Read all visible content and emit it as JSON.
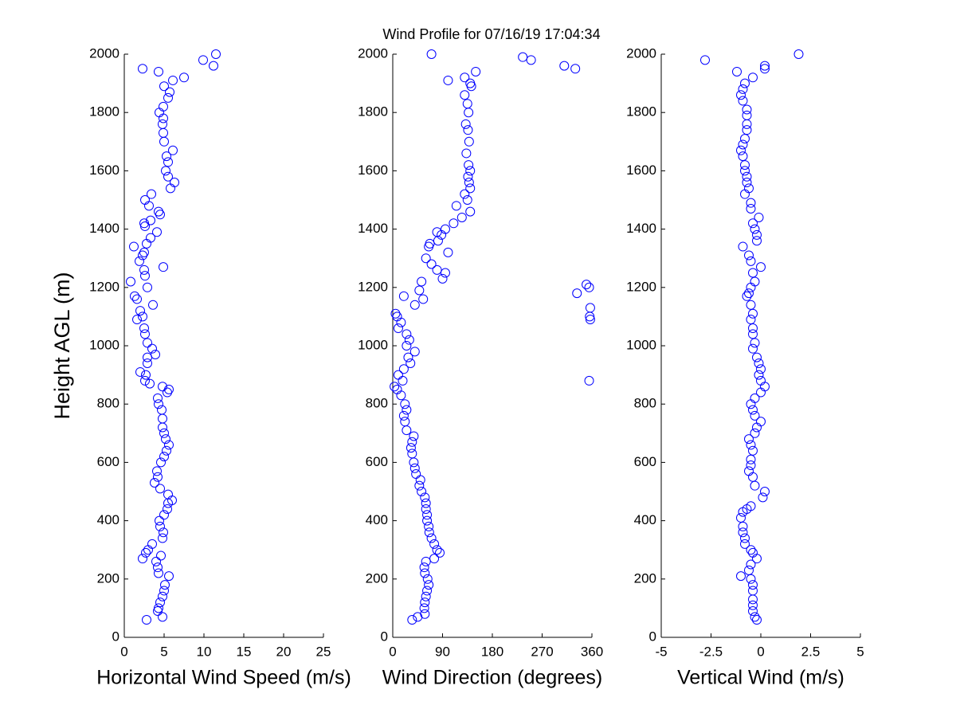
{
  "chart_data": [
    {
      "type": "scatter",
      "title": "Wind Profile for  07/16/19 17:04:34",
      "xlabel": "Horizontal Wind Speed (m/s)",
      "ylabel": "Height AGL (m)",
      "color": "#0000ff",
      "xlim": [
        0,
        25
      ],
      "xticks": [
        0,
        5,
        10,
        15,
        20,
        25
      ],
      "ylim": [
        0,
        2000
      ],
      "yticks": [
        0,
        200,
        400,
        600,
        800,
        1000,
        1200,
        1400,
        1600,
        1800,
        2000
      ],
      "x": [
        2.8,
        4.8,
        4.2,
        4.3,
        4.5,
        4.8,
        5.0,
        5.1,
        5.6,
        4.3,
        4.2,
        4.0,
        2.3,
        4.6,
        2.7,
        3.0,
        3.5,
        4.8,
        4.9,
        4.5,
        4.4,
        5.0,
        5.4,
        5.5,
        6.0,
        5.5,
        4.5,
        3.8,
        4.2,
        4.1,
        4.6,
        5.0,
        5.3,
        5.6,
        5.2,
        5.0,
        4.8,
        4.8,
        4.7,
        4.3,
        4.2,
        5.4,
        5.6,
        4.8,
        3.2,
        2.6,
        2.7,
        2.0,
        2.9,
        2.9,
        3.9,
        3.5,
        2.9,
        2.6,
        2.5,
        1.6,
        2.3,
        2.0,
        3.6,
        1.6,
        1.3,
        2.9,
        0.8,
        2.6,
        2.5,
        4.9,
        1.9,
        2.3,
        2.5,
        1.2,
        2.8,
        3.3,
        4.1,
        2.6,
        2.5,
        3.3,
        4.5,
        4.3,
        3.1,
        2.6,
        3.4,
        5.8,
        6.3,
        5.5,
        5.2,
        5.5,
        5.3,
        6.1,
        5.0,
        4.9,
        4.8,
        4.9,
        4.4,
        4.9,
        5.5,
        5.7,
        5.0,
        6.1,
        7.5,
        4.3,
        2.3,
        11.2,
        9.9,
        11.5
      ],
      "y": [
        60,
        70,
        90,
        100,
        120,
        140,
        160,
        180,
        210,
        220,
        240,
        260,
        270,
        280,
        290,
        300,
        320,
        340,
        360,
        380,
        400,
        420,
        440,
        460,
        470,
        490,
        510,
        530,
        550,
        570,
        600,
        620,
        640,
        660,
        680,
        700,
        720,
        750,
        780,
        800,
        820,
        840,
        850,
        860,
        870,
        880,
        900,
        910,
        940,
        960,
        970,
        990,
        1010,
        1040,
        1060,
        1090,
        1100,
        1120,
        1140,
        1160,
        1170,
        1200,
        1220,
        1240,
        1260,
        1270,
        1290,
        1310,
        1320,
        1340,
        1350,
        1370,
        1390,
        1410,
        1420,
        1430,
        1450,
        1460,
        1480,
        1500,
        1520,
        1540,
        1560,
        1580,
        1600,
        1630,
        1650,
        1670,
        1700,
        1730,
        1760,
        1780,
        1800,
        1820,
        1850,
        1870,
        1890,
        1910,
        1920,
        1940,
        1950,
        1960,
        1980,
        2000
      ]
    },
    {
      "type": "scatter",
      "xlabel": "Wind Direction (degrees)",
      "color": "#0000ff",
      "xlim": [
        0,
        360
      ],
      "xticks": [
        0,
        90,
        180,
        270,
        360
      ],
      "ylim": [
        0,
        2000
      ],
      "yticks": [
        0,
        200,
        400,
        600,
        800,
        1000,
        1200,
        1400,
        1600,
        1800,
        2000
      ],
      "x": [
        35,
        45,
        58,
        57,
        58,
        60,
        62,
        65,
        63,
        58,
        57,
        60,
        75,
        85,
        80,
        75,
        70,
        66,
        65,
        62,
        62,
        60,
        60,
        58,
        52,
        48,
        50,
        42,
        40,
        38,
        35,
        33,
        35,
        38,
        25,
        22,
        20,
        25,
        22,
        15,
        8,
        3,
        18,
        355,
        10,
        20,
        32,
        28,
        40,
        25,
        30,
        25,
        10,
        15,
        357,
        8,
        356,
        5,
        357,
        40,
        55,
        20,
        333,
        48,
        355,
        350,
        52,
        90,
        95,
        80,
        70,
        60,
        100,
        65,
        67,
        82,
        88,
        80,
        95,
        110,
        125,
        140,
        115,
        135,
        130,
        140,
        138,
        136,
        140,
        137,
        133,
        138,
        136,
        132,
        137,
        135,
        130,
        142,
        140,
        100,
        130,
        150,
        330,
        310,
        250,
        235,
        70
      ],
      "y": [
        60,
        70,
        80,
        100,
        120,
        140,
        160,
        180,
        200,
        220,
        240,
        260,
        270,
        290,
        300,
        320,
        340,
        360,
        380,
        400,
        420,
        440,
        460,
        480,
        500,
        520,
        540,
        560,
        580,
        600,
        630,
        650,
        670,
        690,
        710,
        740,
        760,
        780,
        800,
        830,
        850,
        860,
        880,
        880,
        900,
        920,
        940,
        960,
        980,
        1000,
        1020,
        1040,
        1060,
        1080,
        1090,
        1100,
        1100,
        1110,
        1130,
        1140,
        1160,
        1170,
        1180,
        1190,
        1200,
        1210,
        1220,
        1230,
        1250,
        1260,
        1280,
        1300,
        1320,
        1340,
        1350,
        1360,
        1380,
        1390,
        1400,
        1420,
        1440,
        1460,
        1480,
        1500,
        1520,
        1540,
        1560,
        1580,
        1600,
        1620,
        1660,
        1700,
        1740,
        1760,
        1800,
        1830,
        1860,
        1890,
        1900,
        1910,
        1920,
        1940,
        1950,
        1960,
        1980,
        1990,
        2000
      ]
    },
    {
      "type": "scatter",
      "xlabel": "Vertical Wind (m/s)",
      "color": "#0000ff",
      "xlim": [
        -5,
        5
      ],
      "xticks": [
        -5,
        -2.5,
        0,
        2.5,
        5
      ],
      "ylim": [
        0,
        2000
      ],
      "yticks": [
        0,
        200,
        400,
        600,
        800,
        1000,
        1200,
        1400,
        1600,
        1800,
        2000
      ],
      "x": [
        -0.2,
        -0.3,
        -0.4,
        -0.4,
        -0.4,
        -0.4,
        -0.4,
        -0.5,
        -1.0,
        -0.6,
        -0.5,
        -0.2,
        -0.4,
        -0.5,
        -0.8,
        -0.8,
        -0.9,
        -0.9,
        -1.0,
        -0.9,
        -0.7,
        -0.5,
        0.1,
        0.2,
        -0.3,
        -0.4,
        -0.6,
        -0.5,
        -0.5,
        -0.4,
        -0.5,
        -0.6,
        -0.3,
        -0.2,
        0.0,
        -0.3,
        -0.4,
        -0.5,
        -0.3,
        0.0,
        0.2,
        0.0,
        -0.1,
        0.0,
        -0.1,
        -0.2,
        -0.4,
        -0.3,
        -0.4,
        -0.4,
        -0.5,
        -0.4,
        -0.5,
        -0.7,
        -0.6,
        -0.5,
        -0.3,
        -0.4,
        0.0,
        -0.5,
        -0.6,
        -0.9,
        -0.2,
        -0.2,
        -0.3,
        -0.4,
        -0.1,
        -0.5,
        -0.5,
        -0.8,
        -0.6,
        -0.7,
        -0.7,
        -0.8,
        -0.8,
        -0.9,
        -1.0,
        -0.9,
        -0.8,
        -0.7,
        -0.7,
        -0.7,
        -0.7,
        -0.9,
        -1.0,
        -0.9,
        -0.8,
        -0.4,
        -1.2,
        0.2,
        0.2,
        -2.8,
        1.9
      ],
      "y": [
        60,
        70,
        90,
        110,
        130,
        160,
        180,
        200,
        210,
        230,
        250,
        270,
        290,
        300,
        320,
        340,
        360,
        380,
        410,
        430,
        440,
        450,
        480,
        500,
        520,
        550,
        570,
        590,
        610,
        640,
        660,
        680,
        700,
        720,
        740,
        760,
        780,
        800,
        820,
        840,
        860,
        880,
        900,
        920,
        940,
        960,
        990,
        1010,
        1040,
        1060,
        1090,
        1110,
        1140,
        1170,
        1180,
        1200,
        1220,
        1250,
        1270,
        1290,
        1310,
        1340,
        1360,
        1380,
        1400,
        1420,
        1440,
        1470,
        1490,
        1520,
        1540,
        1560,
        1580,
        1600,
        1620,
        1650,
        1670,
        1690,
        1710,
        1740,
        1760,
        1790,
        1810,
        1840,
        1860,
        1880,
        1900,
        1920,
        1940,
        1950,
        1960,
        1980,
        2000
      ]
    }
  ]
}
